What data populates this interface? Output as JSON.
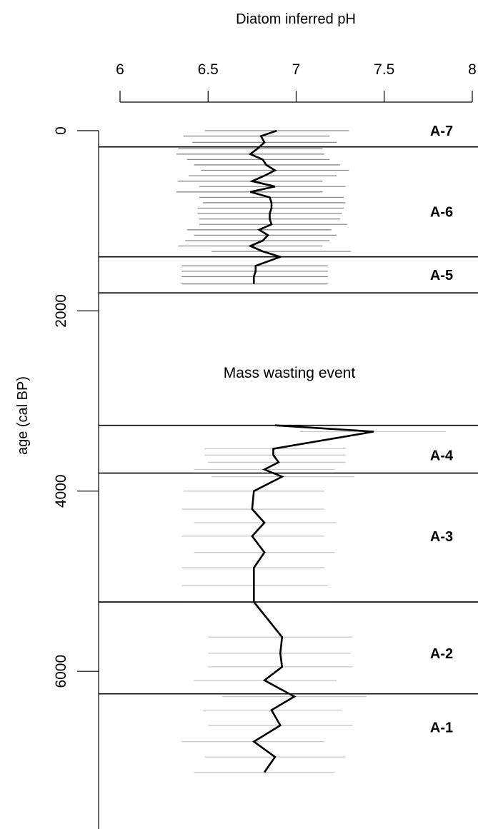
{
  "chart_data": {
    "type": "line",
    "title": "",
    "xlabel": "Diatom inferred pH",
    "ylabel": "age (cal BP)",
    "xlim": [
      6,
      8
    ],
    "ylim": [
      0,
      7000
    ],
    "y_reversed": true,
    "x_axis_position": "top",
    "x_ticks": [
      "6",
      "6.5",
      "7",
      "7.5",
      "8"
    ],
    "y_ticks": [
      "0",
      "2000",
      "4000",
      "6000"
    ],
    "annotation": "Mass wasting event",
    "zone_boundaries": [
      180,
      1400,
      1800,
      3270,
      3800,
      5230,
      6250
    ],
    "zones": [
      {
        "label": "A-7",
        "age": 0
      },
      {
        "label": "A-6",
        "age": 900
      },
      {
        "label": "A-5",
        "age": 1600
      },
      {
        "label": "A-4",
        "age": 3600
      },
      {
        "label": "A-3",
        "age": 4500
      },
      {
        "label": "A-2",
        "age": 5800
      },
      {
        "label": "A-1",
        "age": 6620
      }
    ],
    "series": [
      {
        "points": [
          {
            "age": 0,
            "ph": 6.89,
            "lo": 6.48,
            "hi": 7.3
          },
          {
            "age": 60,
            "ph": 6.8,
            "lo": 6.36,
            "hi": 7.19
          },
          {
            "age": 130,
            "ph": 6.82,
            "lo": 6.41,
            "hi": 7.23
          },
          {
            "age": 200,
            "ph": 6.78,
            "lo": 6.33,
            "hi": 7.15
          },
          {
            "age": 260,
            "ph": 6.74,
            "lo": 6.32,
            "hi": 7.16
          },
          {
            "age": 320,
            "ph": 6.81,
            "lo": 6.38,
            "hi": 7.19
          },
          {
            "age": 380,
            "ph": 6.83,
            "lo": 6.42,
            "hi": 7.25
          },
          {
            "age": 440,
            "ph": 6.88,
            "lo": 6.46,
            "hi": 7.3
          },
          {
            "age": 500,
            "ph": 6.82,
            "lo": 6.39,
            "hi": 7.23
          },
          {
            "age": 560,
            "ph": 6.75,
            "lo": 6.33,
            "hi": 7.15
          },
          {
            "age": 620,
            "ph": 6.88,
            "lo": 6.45,
            "hi": 7.28
          },
          {
            "age": 680,
            "ph": 6.74,
            "lo": 6.32,
            "hi": 7.15
          },
          {
            "age": 740,
            "ph": 6.85,
            "lo": 6.45,
            "hi": 7.27
          },
          {
            "age": 800,
            "ph": 6.86,
            "lo": 6.47,
            "hi": 7.28
          },
          {
            "age": 860,
            "ph": 6.86,
            "lo": 6.44,
            "hi": 7.27
          },
          {
            "age": 920,
            "ph": 6.85,
            "lo": 6.44,
            "hi": 7.26
          },
          {
            "age": 980,
            "ph": 6.85,
            "lo": 6.45,
            "hi": 7.25
          },
          {
            "age": 1040,
            "ph": 6.86,
            "lo": 6.45,
            "hi": 7.29
          },
          {
            "age": 1100,
            "ph": 6.79,
            "lo": 6.38,
            "hi": 7.2
          },
          {
            "age": 1160,
            "ph": 6.84,
            "lo": 6.42,
            "hi": 7.23
          },
          {
            "age": 1220,
            "ph": 6.81,
            "lo": 6.37,
            "hi": 7.19
          },
          {
            "age": 1280,
            "ph": 6.74,
            "lo": 6.33,
            "hi": 7.15
          },
          {
            "age": 1340,
            "ph": 6.81,
            "lo": 6.52,
            "hi": 7.31
          },
          {
            "age": 1400,
            "ph": 6.91,
            "lo": 6.52,
            "hi": 7.33
          },
          {
            "age": 1500,
            "ph": 6.77,
            "lo": 6.35,
            "hi": 7.18
          },
          {
            "age": 1560,
            "ph": 6.77,
            "lo": 6.35,
            "hi": 7.18
          },
          {
            "age": 1620,
            "ph": 6.76,
            "lo": 6.35,
            "hi": 7.18
          },
          {
            "age": 1700,
            "ph": 6.76,
            "lo": 6.35,
            "hi": 7.18
          },
          {
            "age": 3270,
            "ph": 6.88,
            "lo": 6.5,
            "hi": 7.3
          },
          {
            "age": 3340,
            "ph": 7.44,
            "lo": 7.02,
            "hi": 7.85
          },
          {
            "age": 3530,
            "ph": 6.87,
            "lo": 6.48,
            "hi": 7.28
          },
          {
            "age": 3600,
            "ph": 6.87,
            "lo": 6.48,
            "hi": 7.28
          },
          {
            "age": 3680,
            "ph": 6.9,
            "lo": 6.5,
            "hi": 7.28
          },
          {
            "age": 3760,
            "ph": 6.82,
            "lo": 6.42,
            "hi": 7.22
          },
          {
            "age": 3840,
            "ph": 6.92,
            "lo": 6.52,
            "hi": 7.33
          },
          {
            "age": 4000,
            "ph": 6.76,
            "lo": 6.36,
            "hi": 7.16
          },
          {
            "age": 4200,
            "ph": 6.75,
            "lo": 6.35,
            "hi": 7.16
          },
          {
            "age": 4350,
            "ph": 6.82,
            "lo": 6.42,
            "hi": 7.23
          },
          {
            "age": 4500,
            "ph": 6.75,
            "lo": 6.35,
            "hi": 7.16
          },
          {
            "age": 4680,
            "ph": 6.82,
            "lo": 6.42,
            "hi": 7.22
          },
          {
            "age": 4850,
            "ph": 6.76,
            "lo": 6.35,
            "hi": 7.16
          },
          {
            "age": 5050,
            "ph": 6.76,
            "lo": 6.35,
            "hi": 7.18
          },
          {
            "age": 5230,
            "ph": 6.76,
            "lo": 6.35,
            "hi": 7.18
          },
          {
            "age": 5620,
            "ph": 6.92,
            "lo": 6.5,
            "hi": 7.32
          },
          {
            "age": 5800,
            "ph": 6.91,
            "lo": 6.5,
            "hi": 7.31
          },
          {
            "age": 5950,
            "ph": 6.92,
            "lo": 6.5,
            "hi": 7.32
          },
          {
            "age": 6100,
            "ph": 6.82,
            "lo": 6.42,
            "hi": 7.23
          },
          {
            "age": 6280,
            "ph": 6.99,
            "lo": 6.58,
            "hi": 7.4
          },
          {
            "age": 6430,
            "ph": 6.86,
            "lo": 6.47,
            "hi": 7.26
          },
          {
            "age": 6600,
            "ph": 6.91,
            "lo": 6.5,
            "hi": 7.32
          },
          {
            "age": 6780,
            "ph": 6.76,
            "lo": 6.35,
            "hi": 7.16
          },
          {
            "age": 6950,
            "ph": 6.88,
            "lo": 6.48,
            "hi": 7.28
          },
          {
            "age": 7120,
            "ph": 6.82,
            "lo": 6.42,
            "hi": 7.22
          }
        ]
      }
    ]
  }
}
